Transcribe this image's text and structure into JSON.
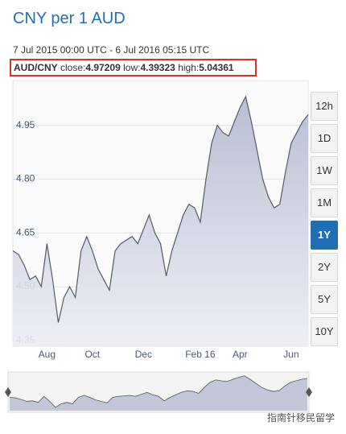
{
  "header": {
    "title": "CNY per 1 AUD",
    "date_range": "7 Jul 2015 00:00 UTC - 6 Jul 2016 05:15 UTC",
    "pair": "AUD/CNY",
    "close_label": "close:",
    "close": 4.97209,
    "low_label": "low:",
    "low": 4.39323,
    "high_label": "high:",
    "high": 5.04361
  },
  "chart_data": {
    "type": "area",
    "categories": [
      null,
      null,
      null,
      null,
      null,
      null,
      "Aug",
      null,
      null,
      null,
      null,
      null,
      null,
      null,
      "Oct",
      null,
      null,
      null,
      null,
      null,
      null,
      null,
      null,
      "Dec",
      null,
      null,
      null,
      null,
      null,
      null,
      null,
      null,
      null,
      "Feb 16",
      null,
      null,
      null,
      null,
      null,
      null,
      "Apr",
      null,
      null,
      null,
      null,
      null,
      null,
      null,
      null,
      "Jun",
      null,
      null,
      null
    ],
    "values": [
      4.6,
      4.59,
      4.56,
      4.52,
      4.53,
      4.5,
      4.62,
      4.52,
      4.4,
      4.47,
      4.5,
      4.47,
      4.6,
      4.64,
      4.6,
      4.55,
      4.52,
      4.49,
      4.6,
      4.62,
      4.63,
      4.64,
      4.62,
      4.66,
      4.7,
      4.65,
      4.62,
      4.53,
      4.6,
      4.65,
      4.7,
      4.73,
      4.72,
      4.68,
      4.8,
      4.9,
      4.95,
      4.93,
      4.92,
      4.96,
      5.0,
      5.03,
      4.96,
      4.88,
      4.8,
      4.75,
      4.72,
      4.73,
      4.82,
      4.9,
      4.93,
      4.96,
      4.98
    ],
    "color": "#555a66",
    "fill": "#b9bdd4",
    "ylim": [
      4.334,
      5.075
    ],
    "yticks": [
      4.35,
      {
        "value": 4.5,
        "label": "4.50"
      },
      4.65,
      {
        "value": 4.8,
        "label": "4.80"
      },
      4.95
    ],
    "grid": true
  },
  "range_buttons": [
    "12h",
    "1D",
    "1W",
    "1M",
    "1Y",
    "2Y",
    "5Y",
    "10Y"
  ],
  "active_range": "1Y",
  "watermark": "指南针移民留学"
}
